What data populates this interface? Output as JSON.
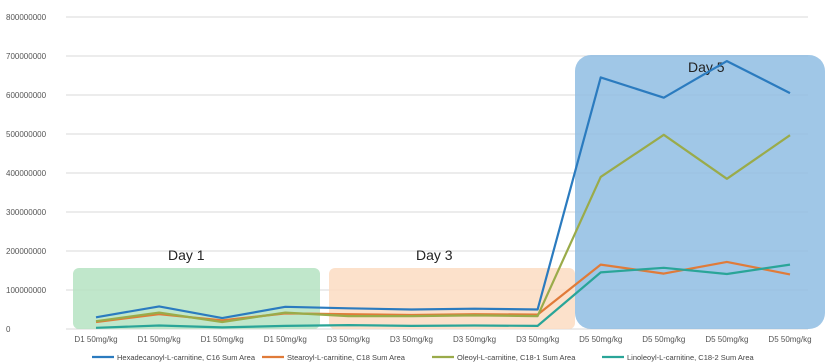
{
  "chart_data": {
    "type": "line",
    "categories": [
      "D1 50mg/kg",
      "D1 50mg/kg",
      "D1 50mg/kg",
      "D1 50mg/kg",
      "D3 50mg/kg",
      "D3 50mg/kg",
      "D3 50mg/kg",
      "D3 50mg/kg",
      "D5 50mg/kg",
      "D5 50mg/kg",
      "D5 50mg/kg",
      "D5 50mg/kg"
    ],
    "ylim": [
      0,
      800000000
    ],
    "y_ticks": [
      "0",
      "100000000",
      "200000000",
      "300000000",
      "400000000",
      "500000000",
      "600000000",
      "700000000",
      "800000000"
    ],
    "grid": "horizontal",
    "legend_position": "bottom",
    "series": [
      {
        "name": "Hexadecanoyl-L-carnitine, C16 Sum Area",
        "color": "#2b7bbf",
        "values": [
          30000000,
          58000000,
          28000000,
          57000000,
          53000000,
          50000000,
          52000000,
          50000000,
          645000000,
          593000000,
          687000000,
          605000000
        ]
      },
      {
        "name": "Stearoyl-L-carnitine, C18 Sum Area",
        "color": "#e07b39",
        "values": [
          18000000,
          38000000,
          22000000,
          40000000,
          38000000,
          36000000,
          38000000,
          37000000,
          165000000,
          142000000,
          172000000,
          140000000
        ]
      },
      {
        "name": "Oleoyl-L-carnitine, C18-1 Sum Area",
        "color": "#9aab4a",
        "values": [
          20000000,
          42000000,
          18000000,
          42000000,
          33000000,
          33000000,
          35000000,
          33000000,
          390000000,
          498000000,
          385000000,
          497000000
        ]
      },
      {
        "name": "Linoleoyl-L-carnitine, C18-2 Sum Area",
        "color": "#2aa598",
        "values": [
          3000000,
          9000000,
          4000000,
          8000000,
          10000000,
          8000000,
          9000000,
          8000000,
          145000000,
          157000000,
          141000000,
          165000000
        ]
      }
    ],
    "regions": [
      {
        "label": "Day 1",
        "from_index": 0,
        "to_index": 3,
        "fill": "#b5e3c2"
      },
      {
        "label": "Day 3",
        "from_index": 4,
        "to_index": 7,
        "fill": "#fbdcc2"
      },
      {
        "label": "Day 5",
        "from_index": 8,
        "to_index": 11,
        "fill": "#8fbde3"
      }
    ]
  }
}
